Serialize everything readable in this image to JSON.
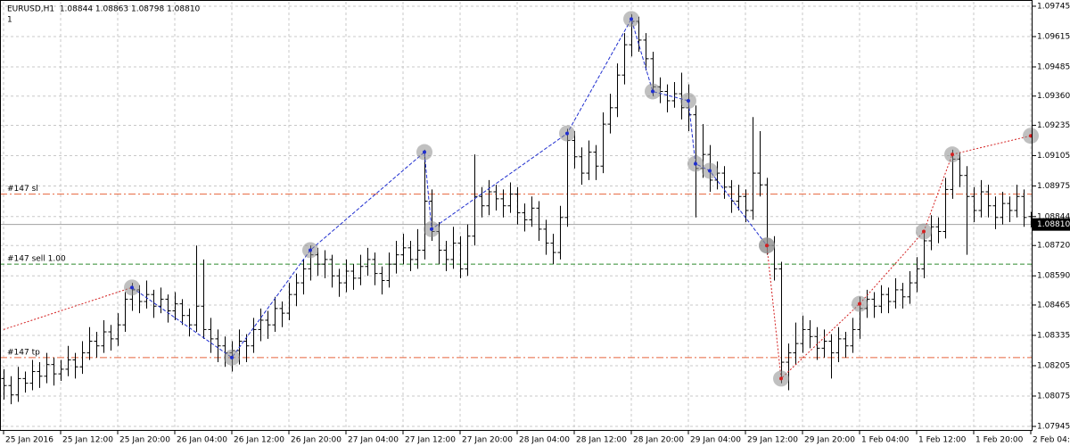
{
  "chart_data": {
    "type": "ohlc",
    "title": "EURUSD,H1  1.08844 1.08863 1.08798 1.08810",
    "subtitle": "1",
    "bar_color": "#000000",
    "grid": true,
    "ylim": [
      1.07926,
      1.09764
    ],
    "yticks": [
      1.09745,
      1.09615,
      1.09485,
      {
        "value": 1.0936,
        "label": "1.09360"
      },
      1.09235,
      1.09105,
      1.08975,
      1.08844,
      {
        "value": 1.0872,
        "label": "1.08720"
      },
      {
        "value": 1.0859,
        "label": "1.08590"
      },
      1.08465,
      1.08335,
      1.08205,
      1.08075,
      1.07945
    ],
    "current_price": {
      "value": 1.0881,
      "label": "1.08810"
    },
    "categories": [
      "25 Jan 2016",
      null,
      null,
      null,
      null,
      null,
      null,
      null,
      "25 Jan 12:00",
      null,
      null,
      null,
      null,
      null,
      null,
      null,
      "25 Jan 20:00",
      null,
      null,
      null,
      null,
      null,
      null,
      null,
      "26 Jan 04:00",
      null,
      null,
      null,
      null,
      null,
      null,
      null,
      "26 Jan 12:00",
      null,
      null,
      null,
      null,
      null,
      null,
      null,
      "26 Jan 20:00",
      null,
      null,
      null,
      null,
      null,
      null,
      null,
      "27 Jan 04:00",
      null,
      null,
      null,
      null,
      null,
      null,
      null,
      "27 Jan 12:00",
      null,
      null,
      null,
      null,
      null,
      null,
      null,
      "27 Jan 20:00",
      null,
      null,
      null,
      null,
      null,
      null,
      null,
      "28 Jan 04:00",
      null,
      null,
      null,
      null,
      null,
      null,
      null,
      "28 Jan 12:00",
      null,
      null,
      null,
      null,
      null,
      null,
      null,
      "28 Jan 20:00",
      null,
      null,
      null,
      null,
      null,
      null,
      null,
      "29 Jan 04:00",
      null,
      null,
      null,
      null,
      null,
      null,
      null,
      "29 Jan 12:00",
      null,
      null,
      null,
      null,
      null,
      null,
      null,
      "29 Jan 20:00",
      null,
      null,
      null,
      null,
      null,
      null,
      null,
      "1 Feb 04:00",
      null,
      null,
      null,
      null,
      null,
      null,
      null,
      "1 Feb 12:00",
      null,
      null,
      null,
      null,
      null,
      null,
      null,
      "1 Feb 20:00",
      null,
      null,
      null,
      null,
      null,
      null,
      null,
      "2 Feb 04:00"
    ],
    "bars": [
      [
        1.0815,
        1.0819,
        1.0806,
        1.0812
      ],
      [
        1.0812,
        1.0816,
        1.0804,
        1.0808
      ],
      [
        1.0808,
        1.082,
        1.0805,
        1.0815
      ],
      [
        1.0815,
        1.0818,
        1.0809,
        1.0813
      ],
      [
        1.0813,
        1.0823,
        1.081,
        1.0818
      ],
      [
        1.0818,
        1.0822,
        1.0811,
        1.0816
      ],
      [
        1.0816,
        1.0826,
        1.0813,
        1.0821
      ],
      [
        1.0821,
        1.0824,
        1.0812,
        1.0817
      ],
      [
        1.0817,
        1.0823,
        1.0814,
        1.0819
      ],
      [
        1.0819,
        1.0829,
        1.0816,
        1.0823
      ],
      [
        1.0823,
        1.0826,
        1.0815,
        1.082
      ],
      [
        1.082,
        1.0831,
        1.0817,
        1.0826
      ],
      [
        1.0826,
        1.0837,
        1.0823,
        1.0831
      ],
      [
        1.0831,
        1.0835,
        1.0824,
        1.0829
      ],
      [
        1.0829,
        1.084,
        1.0826,
        1.0835
      ],
      [
        1.0835,
        1.0838,
        1.0827,
        1.0832
      ],
      [
        1.0832,
        1.0843,
        1.0829,
        1.0838
      ],
      [
        1.0838,
        1.0852,
        1.0835,
        1.0849
      ],
      [
        1.0849,
        1.0856,
        1.0844,
        1.0853
      ],
      [
        1.0853,
        1.0855,
        1.0843,
        1.0848
      ],
      [
        1.0848,
        1.0857,
        1.0845,
        1.0851
      ],
      [
        1.0851,
        1.0853,
        1.0841,
        1.0846
      ],
      [
        1.0846,
        1.0854,
        1.0843,
        1.0849
      ],
      [
        1.0849,
        1.0851,
        1.0839,
        1.0844
      ],
      [
        1.0844,
        1.0852,
        1.084,
        1.0847
      ],
      [
        1.0847,
        1.0849,
        1.0838,
        1.0842
      ],
      [
        1.0842,
        1.0845,
        1.0833,
        1.0838
      ],
      [
        1.0838,
        1.0872,
        1.0835,
        1.0846
      ],
      [
        1.0846,
        1.0866,
        1.0832,
        1.0836
      ],
      [
        1.0836,
        1.0841,
        1.0826,
        1.0832
      ],
      [
        1.0832,
        1.0836,
        1.0822,
        1.0829
      ],
      [
        1.0829,
        1.0833,
        1.082,
        1.0826
      ],
      [
        1.0826,
        1.0831,
        1.0818,
        1.0827
      ],
      [
        1.0827,
        1.0836,
        1.0821,
        1.0831
      ],
      [
        1.0831,
        1.0834,
        1.0822,
        1.0829
      ],
      [
        1.0829,
        1.0841,
        1.0826,
        1.0836
      ],
      [
        1.0836,
        1.0845,
        1.0831,
        1.084
      ],
      [
        1.084,
        1.0844,
        1.0832,
        1.0838
      ],
      [
        1.0838,
        1.085,
        1.0835,
        1.0845
      ],
      [
        1.0845,
        1.0848,
        1.0837,
        1.0843
      ],
      [
        1.0843,
        1.0856,
        1.084,
        1.0851
      ],
      [
        1.0851,
        1.086,
        1.0846,
        1.0856
      ],
      [
        1.0856,
        1.0866,
        1.0851,
        1.0862
      ],
      [
        1.0862,
        1.0872,
        1.0857,
        1.0868
      ],
      [
        1.0868,
        1.0871,
        1.0859,
        1.0864
      ],
      [
        1.0864,
        1.087,
        1.0858,
        1.0866
      ],
      [
        1.0866,
        1.0868,
        1.0854,
        1.0859
      ],
      [
        1.0859,
        1.0862,
        1.085,
        1.0856
      ],
      [
        1.0856,
        1.0866,
        1.0852,
        1.0861
      ],
      [
        1.0861,
        1.0864,
        1.0853,
        1.0858
      ],
      [
        1.0858,
        1.0868,
        1.0855,
        1.0863
      ],
      [
        1.0863,
        1.0871,
        1.0859,
        1.0866
      ],
      [
        1.0866,
        1.0869,
        1.0855,
        1.086
      ],
      [
        1.086,
        1.0863,
        1.0851,
        1.0857
      ],
      [
        1.0857,
        1.0869,
        1.0854,
        1.0864
      ],
      [
        1.0864,
        1.0874,
        1.086,
        1.0868
      ],
      [
        1.0868,
        1.0877,
        1.0864,
        1.0871
      ],
      [
        1.0871,
        1.0874,
        1.0861,
        1.0866
      ],
      [
        1.0866,
        1.0879,
        1.0862,
        1.087
      ],
      [
        1.087,
        1.0913,
        1.0866,
        1.0891
      ],
      [
        1.0891,
        1.0896,
        1.0874,
        1.0878
      ],
      [
        1.0878,
        1.0882,
        1.0864,
        1.087
      ],
      [
        1.087,
        1.0874,
        1.0861,
        1.0866
      ],
      [
        1.0866,
        1.088,
        1.0862,
        1.0873
      ],
      [
        1.0873,
        1.0876,
        1.0858,
        1.0862
      ],
      [
        1.0862,
        1.0881,
        1.0859,
        1.0876
      ],
      [
        1.0876,
        1.0911,
        1.0872,
        1.0893
      ],
      [
        1.0893,
        1.0897,
        1.0884,
        1.0889
      ],
      [
        1.0889,
        1.09,
        1.0885,
        1.0895
      ],
      [
        1.0895,
        1.0898,
        1.0887,
        1.0892
      ],
      [
        1.0892,
        1.0896,
        1.0884,
        1.0889
      ],
      [
        1.0889,
        1.0899,
        1.0886,
        1.0894
      ],
      [
        1.0894,
        1.0897,
        1.0881,
        1.0886
      ],
      [
        1.0886,
        1.089,
        1.0878,
        1.0883
      ],
      [
        1.0883,
        1.0893,
        1.088,
        1.0888
      ],
      [
        1.0888,
        1.0891,
        1.0874,
        1.0879
      ],
      [
        1.0879,
        1.0883,
        1.0868,
        1.0873
      ],
      [
        1.0873,
        1.0877,
        1.0864,
        1.0869
      ],
      [
        1.0869,
        1.0889,
        1.0866,
        1.0884
      ],
      [
        1.0884,
        1.0922,
        1.088,
        1.0917
      ],
      [
        1.0917,
        1.0921,
        1.0905,
        1.091
      ],
      [
        1.091,
        1.0914,
        1.0898,
        1.0903
      ],
      [
        1.0903,
        1.0917,
        1.09,
        1.0912
      ],
      [
        1.0912,
        1.0915,
        1.09,
        1.0906
      ],
      [
        1.0906,
        1.0929,
        1.0903,
        1.0924
      ],
      [
        1.0924,
        1.0937,
        1.092,
        1.0931
      ],
      [
        1.0931,
        1.095,
        1.0927,
        1.0945
      ],
      [
        1.0945,
        1.0963,
        1.0941,
        1.0958
      ],
      [
        1.0958,
        1.0971,
        1.0953,
        1.0968
      ],
      [
        1.0968,
        1.097,
        1.0955,
        1.096
      ],
      [
        1.096,
        1.0963,
        1.0947,
        1.0952
      ],
      [
        1.0952,
        1.0955,
        1.0936,
        1.094
      ],
      [
        1.094,
        1.0944,
        1.0933,
        1.0938
      ],
      [
        1.0938,
        1.0941,
        1.0929,
        1.0934
      ],
      [
        1.0934,
        1.0942,
        1.0931,
        1.0937
      ],
      [
        1.0937,
        1.0946,
        1.0926,
        1.0931
      ],
      [
        1.0931,
        1.0941,
        1.0921,
        1.0928
      ],
      [
        1.0928,
        1.0932,
        1.0884,
        1.0905
      ],
      [
        1.0905,
        1.0924,
        1.0901,
        1.0911
      ],
      [
        1.0911,
        1.0915,
        1.0895,
        1.09
      ],
      [
        1.09,
        1.0908,
        1.0896,
        1.0903
      ],
      [
        1.0903,
        1.0906,
        1.0892,
        1.0897
      ],
      [
        1.0897,
        1.09,
        1.0886,
        1.0891
      ],
      [
        1.0891,
        1.0898,
        1.0887,
        1.0893
      ],
      [
        1.0893,
        1.0896,
        1.0882,
        1.0887
      ],
      [
        1.0887,
        1.0927,
        1.0883,
        1.0903
      ],
      [
        1.0903,
        1.0921,
        1.0893,
        1.0898
      ],
      [
        1.0898,
        1.0901,
        1.0868,
        1.0872
      ],
      [
        1.0872,
        1.0876,
        1.0857,
        1.0862
      ],
      [
        1.0862,
        1.0865,
        1.0813,
        1.0822
      ],
      [
        1.0822,
        1.083,
        1.081,
        1.0826
      ],
      [
        1.0826,
        1.0839,
        1.0821,
        1.083
      ],
      [
        1.083,
        1.0842,
        1.0826,
        1.0836
      ],
      [
        1.0836,
        1.084,
        1.0828,
        1.0833
      ],
      [
        1.0833,
        1.0837,
        1.0823,
        1.0828
      ],
      [
        1.0828,
        1.0836,
        1.0824,
        1.0831
      ],
      [
        1.0831,
        1.0834,
        1.0815,
        1.0826
      ],
      [
        1.0826,
        1.0837,
        1.0822,
        1.0832
      ],
      [
        1.0832,
        1.0835,
        1.0824,
        1.0829
      ],
      [
        1.0829,
        1.0841,
        1.0826,
        1.0836
      ],
      [
        1.0836,
        1.085,
        1.0832,
        1.0845
      ],
      [
        1.0845,
        1.0853,
        1.0841,
        1.0849
      ],
      [
        1.0849,
        1.0852,
        1.0841,
        1.0846
      ],
      [
        1.0846,
        1.0855,
        1.0843,
        1.0851
      ],
      [
        1.0851,
        1.0854,
        1.0843,
        1.0848
      ],
      [
        1.0848,
        1.0858,
        1.0845,
        1.0853
      ],
      [
        1.0853,
        1.0856,
        1.0845,
        1.085
      ],
      [
        1.085,
        1.0861,
        1.0847,
        1.0856
      ],
      [
        1.0856,
        1.0867,
        1.0852,
        1.0862
      ],
      [
        1.0862,
        1.0878,
        1.0858,
        1.0874
      ],
      [
        1.0874,
        1.0885,
        1.087,
        1.088
      ],
      [
        1.088,
        1.0884,
        1.0873,
        1.0878
      ],
      [
        1.0878,
        1.0901,
        1.0875,
        1.0896
      ],
      [
        1.0896,
        1.0913,
        1.0892,
        1.0909
      ],
      [
        1.0909,
        1.0912,
        1.0897,
        1.0902
      ],
      [
        1.0902,
        1.0906,
        1.0868,
        1.0893
      ],
      [
        1.0893,
        1.0897,
        1.0882,
        1.0887
      ],
      [
        1.0887,
        1.09,
        1.0884,
        1.0895
      ],
      [
        1.0895,
        1.0898,
        1.0884,
        1.0889
      ],
      [
        1.0889,
        1.0893,
        1.0879,
        1.0884
      ],
      [
        1.0884,
        1.0895,
        1.0881,
        1.089
      ],
      [
        1.089,
        1.0893,
        1.0882,
        1.0887
      ],
      [
        1.0887,
        1.0898,
        1.0884,
        1.0893
      ],
      [
        1.0893,
        1.0896,
        1.088,
        1.0884
      ],
      [
        1.08844,
        1.08863,
        1.08798,
        1.0881
      ]
    ],
    "orders": [
      {
        "label": "#147 sl",
        "price": 1.0894,
        "color": "#e8643c",
        "dash": "8 3 2 3"
      },
      {
        "label": "#147 sell 1.00",
        "price": 1.0864,
        "color": "#2e8b2e",
        "dash": "5 3"
      },
      {
        "label": "#147 tp",
        "price": 1.0824,
        "color": "#e8643c",
        "dash": "8 3 2 3"
      }
    ],
    "zigzag": {
      "color": "#1f2ecf",
      "x": [
        18,
        32,
        43,
        59,
        60,
        79,
        88,
        91,
        96,
        97,
        99,
        107
      ],
      "values": [
        1.0854,
        1.0824,
        1.087,
        1.0912,
        1.0879,
        1.092,
        1.0969,
        1.0938,
        1.0934,
        1.0907,
        1.0904,
        1.0872
      ]
    },
    "trend": {
      "color": "#d42020",
      "x": [
        0,
        18
      ],
      "values": [
        1.0836,
        1.0854
      ]
    },
    "trend2": {
      "color": "#d42020",
      "x": [
        107,
        109,
        120,
        129,
        133,
        144
      ],
      "values": [
        1.0872,
        1.0815,
        1.0847,
        1.0878,
        1.0911,
        1.0919
      ]
    }
  }
}
